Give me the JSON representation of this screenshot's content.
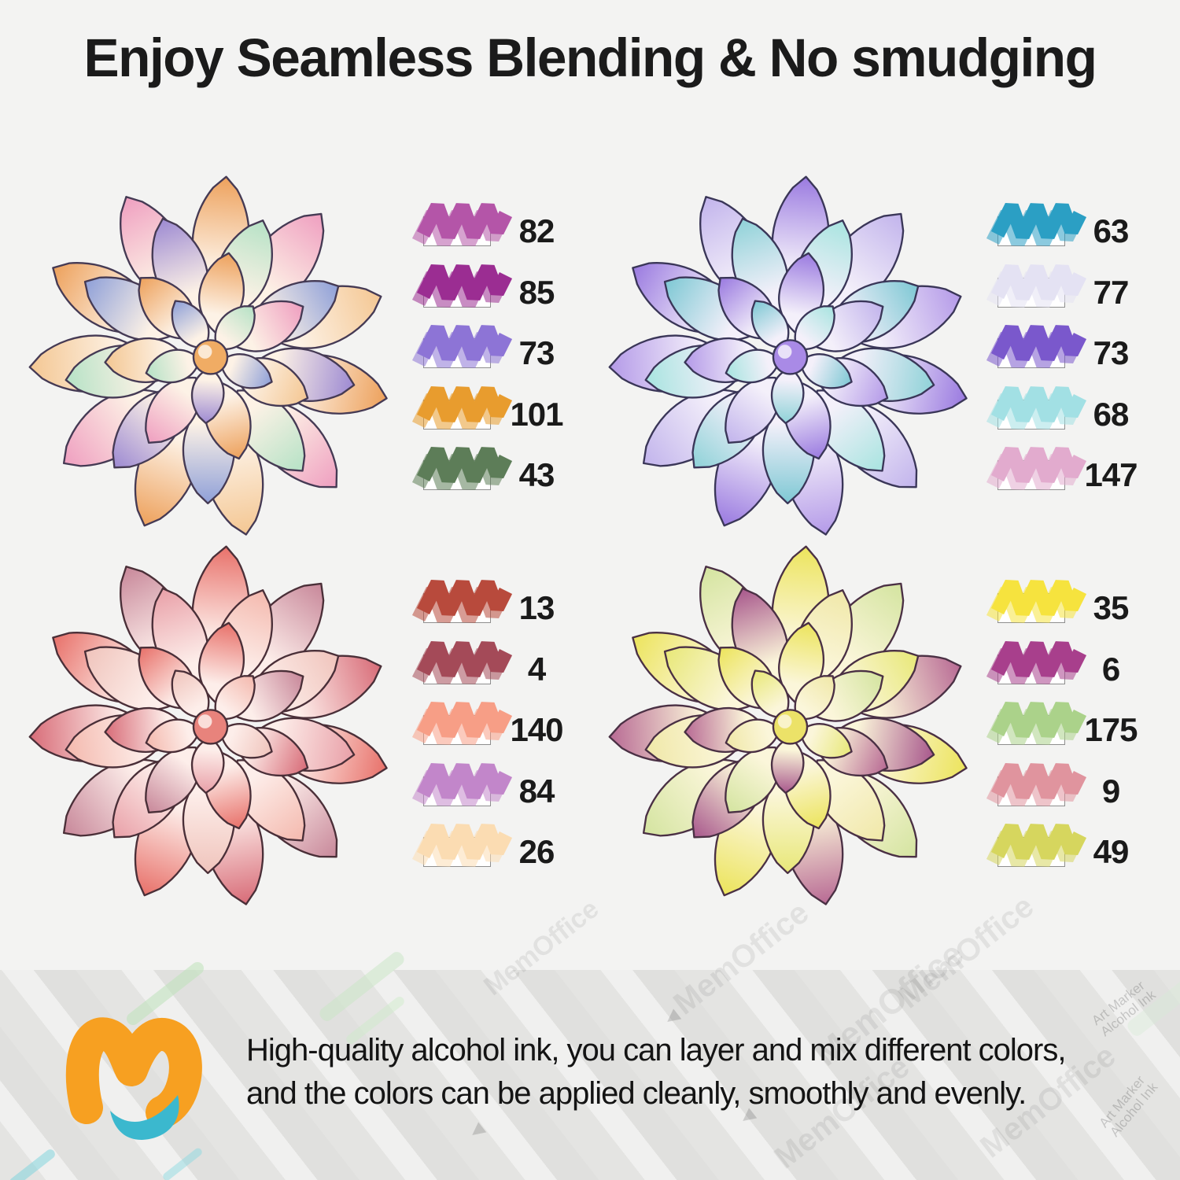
{
  "title": "Enjoy Seamless Blending & No smudging",
  "flowers": [
    {
      "name": "succulent-orange-purple",
      "palette": {
        "outline": "#453a54",
        "base": "#fdf2e6",
        "center": "#f0ac64",
        "tints": [
          "#eda15c",
          "#9d8ad2",
          "#ef9fc0",
          "#b6e2c6",
          "#f4c793",
          "#8fa0d8"
        ]
      },
      "swatches": [
        {
          "label": "82",
          "color": "#b455a8"
        },
        {
          "label": "85",
          "color": "#9b2d92"
        },
        {
          "label": "73",
          "color": "#8d74d6"
        },
        {
          "label": "101",
          "color": "#e89c2e"
        },
        {
          "label": "43",
          "color": "#5d7d58"
        }
      ]
    },
    {
      "name": "succulent-purple-teal",
      "palette": {
        "outline": "#3a3658",
        "base": "#f4f0fa",
        "center": "#a98ae6",
        "tints": [
          "#9a7ae0",
          "#8fd2d8",
          "#c2b4ec",
          "#a8e4e0",
          "#b49ae8",
          "#7ec8d4"
        ]
      },
      "swatches": [
        {
          "label": "63",
          "color": "#2b9fc4"
        },
        {
          "label": "77",
          "color": "#e4e2f3"
        },
        {
          "label": "73",
          "color": "#7a58cc"
        },
        {
          "label": "68",
          "color": "#a2e0e4"
        },
        {
          "label": "147",
          "color": "#e2abce"
        }
      ]
    },
    {
      "name": "succulent-pink-red",
      "palette": {
        "outline": "#4a2f38",
        "base": "#fdeeea",
        "center": "#e8837c",
        "tints": [
          "#e8716a",
          "#e9a0a8",
          "#c8889a",
          "#f4b9ae",
          "#d86c78",
          "#f0c4bc"
        ]
      },
      "swatches": [
        {
          "label": "13",
          "color": "#b84a3c"
        },
        {
          "label": "4",
          "color": "#a44a58"
        },
        {
          "label": "140",
          "color": "#f79e86"
        },
        {
          "label": "84",
          "color": "#c286ca"
        },
        {
          "label": "26",
          "color": "#fbdcb2"
        }
      ]
    },
    {
      "name": "succulent-yellow-plum",
      "palette": {
        "outline": "#4a3044",
        "base": "#fbf6da",
        "center": "#ece268",
        "tints": [
          "#ece45c",
          "#a8588c",
          "#d4e4a0",
          "#f0e8a8",
          "#b86a94",
          "#e8e878"
        ]
      },
      "swatches": [
        {
          "label": "35",
          "color": "#f6e33e"
        },
        {
          "label": "6",
          "color": "#a83f8c"
        },
        {
          "label": "175",
          "color": "#abd28a"
        },
        {
          "label": "9",
          "color": "#e0949e"
        },
        {
          "label": "49",
          "color": "#d6d65e"
        }
      ]
    }
  ],
  "footer": {
    "line1": "High-quality alcohol ink, you can layer and mix different colors,",
    "line2": "and the colors can be applied cleanly, smoothly and evenly."
  },
  "logo": {
    "orange": "#F7A021",
    "teal": "#3BB8CE"
  },
  "watermarks": {
    "brand": "MemOffice",
    "marker_label_line1": "Art Marker",
    "marker_label_line2": "Alcohol Ink"
  }
}
